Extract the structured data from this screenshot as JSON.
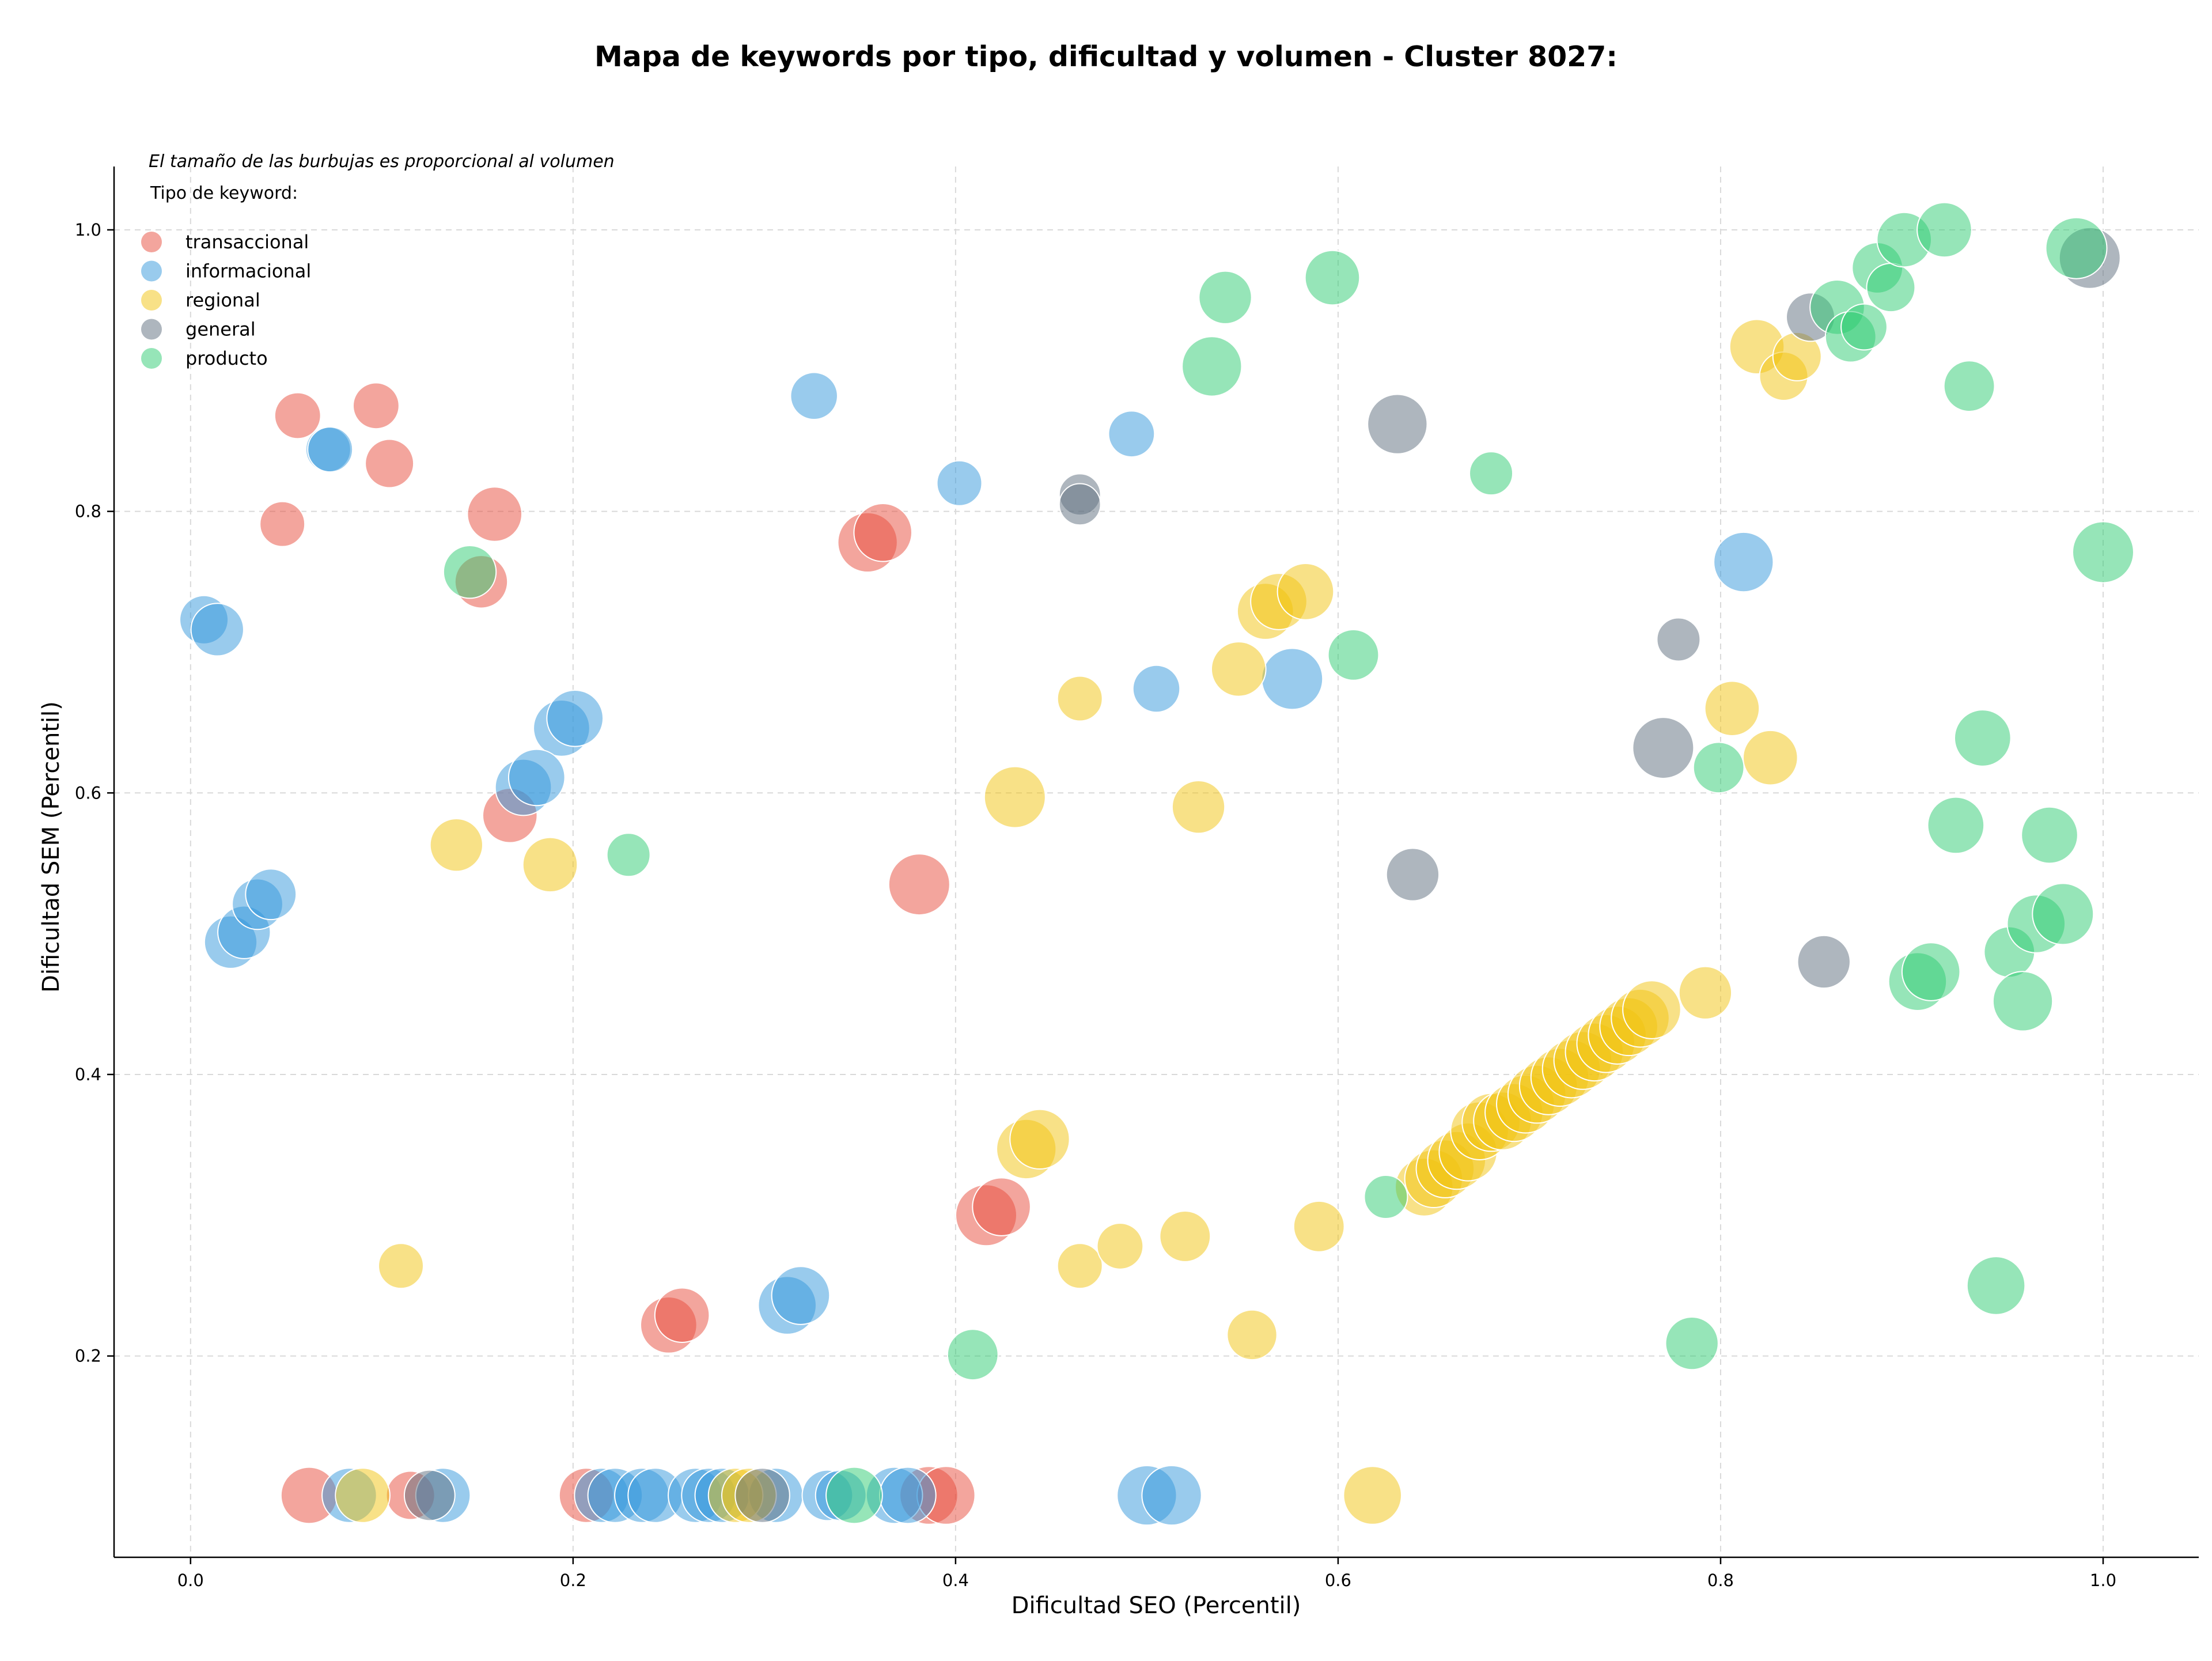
{
  "chart_data": {
    "type": "scatter",
    "title": "Mapa de keywords por tipo, dificultad y volumen - Cluster 8027:",
    "xlabel": "Dificultad SEO (Percentil)",
    "ylabel": "Dificultad SEM (Percentil)",
    "note": "El tamaño de las burbujas es proporcional al volumen",
    "legend_title": "Tipo de keyword:",
    "legend_position": "top-left",
    "grid": true,
    "xlim": [
      -0.04,
      1.05
    ],
    "ylim": [
      0.057,
      1.045
    ],
    "x_ticks": [
      "0.0",
      "0.2",
      "0.4",
      "0.6",
      "0.8",
      "1.0"
    ],
    "y_ticks": [
      "0.2",
      "0.4",
      "0.6",
      "0.8",
      "1.0"
    ],
    "size_unit": "relative volume (0-1)",
    "series": [
      {
        "name": "transaccional",
        "color": "#E74C3C",
        "points": [
          {
            "x": 0.056,
            "y": 0.868,
            "s": 0.2
          },
          {
            "x": 0.097,
            "y": 0.875,
            "s": 0.2
          },
          {
            "x": 0.104,
            "y": 0.834,
            "s": 0.25
          },
          {
            "x": 0.048,
            "y": 0.791,
            "s": 0.18
          },
          {
            "x": 0.159,
            "y": 0.798,
            "s": 0.4
          },
          {
            "x": 0.152,
            "y": 0.75,
            "s": 0.35
          },
          {
            "x": 0.167,
            "y": 0.584,
            "s": 0.4
          },
          {
            "x": 0.354,
            "y": 0.778,
            "s": 0.55
          },
          {
            "x": 0.362,
            "y": 0.785,
            "s": 0.5
          },
          {
            "x": 0.381,
            "y": 0.535,
            "s": 0.6
          },
          {
            "x": 0.416,
            "y": 0.3,
            "s": 0.6
          },
          {
            "x": 0.424,
            "y": 0.306,
            "s": 0.5
          },
          {
            "x": 0.25,
            "y": 0.222,
            "s": 0.45
          },
          {
            "x": 0.257,
            "y": 0.229,
            "s": 0.4
          },
          {
            "x": 0.062,
            "y": 0.101,
            "s": 0.45
          },
          {
            "x": 0.115,
            "y": 0.101,
            "s": 0.25
          },
          {
            "x": 0.207,
            "y": 0.101,
            "s": 0.4
          },
          {
            "x": 0.386,
            "y": 0.101,
            "s": 0.5
          },
          {
            "x": 0.395,
            "y": 0.101,
            "s": 0.5
          }
        ]
      },
      {
        "name": "informacional",
        "color": "#3498DB",
        "points": [
          {
            "x": 0.072,
            "y": 0.844,
            "s": 0.18
          },
          {
            "x": 0.073,
            "y": 0.844,
            "s": 0.18
          },
          {
            "x": 0.007,
            "y": 0.723,
            "s": 0.25
          },
          {
            "x": 0.014,
            "y": 0.716,
            "s": 0.35
          },
          {
            "x": 0.326,
            "y": 0.882,
            "s": 0.22
          },
          {
            "x": 0.402,
            "y": 0.82,
            "s": 0.18
          },
          {
            "x": 0.492,
            "y": 0.855,
            "s": 0.2
          },
          {
            "x": 0.505,
            "y": 0.674,
            "s": 0.22
          },
          {
            "x": 0.194,
            "y": 0.646,
            "s": 0.45
          },
          {
            "x": 0.201,
            "y": 0.653,
            "s": 0.45
          },
          {
            "x": 0.174,
            "y": 0.604,
            "s": 0.45
          },
          {
            "x": 0.181,
            "y": 0.611,
            "s": 0.45
          },
          {
            "x": 0.021,
            "y": 0.494,
            "s": 0.35
          },
          {
            "x": 0.028,
            "y": 0.501,
            "s": 0.35
          },
          {
            "x": 0.035,
            "y": 0.521,
            "s": 0.3
          },
          {
            "x": 0.042,
            "y": 0.528,
            "s": 0.3
          },
          {
            "x": 0.576,
            "y": 0.681,
            "s": 0.6
          },
          {
            "x": 0.812,
            "y": 0.764,
            "s": 0.55
          },
          {
            "x": 0.312,
            "y": 0.236,
            "s": 0.5
          },
          {
            "x": 0.319,
            "y": 0.243,
            "s": 0.5
          },
          {
            "x": 0.083,
            "y": 0.101,
            "s": 0.4
          },
          {
            "x": 0.132,
            "y": 0.101,
            "s": 0.4
          },
          {
            "x": 0.215,
            "y": 0.101,
            "s": 0.4
          },
          {
            "x": 0.222,
            "y": 0.101,
            "s": 0.4
          },
          {
            "x": 0.236,
            "y": 0.101,
            "s": 0.4
          },
          {
            "x": 0.243,
            "y": 0.101,
            "s": 0.4
          },
          {
            "x": 0.264,
            "y": 0.101,
            "s": 0.4
          },
          {
            "x": 0.271,
            "y": 0.101,
            "s": 0.4
          },
          {
            "x": 0.278,
            "y": 0.101,
            "s": 0.4
          },
          {
            "x": 0.306,
            "y": 0.101,
            "s": 0.4
          },
          {
            "x": 0.333,
            "y": 0.101,
            "s": 0.3
          },
          {
            "x": 0.34,
            "y": 0.101,
            "s": 0.3
          },
          {
            "x": 0.368,
            "y": 0.101,
            "s": 0.45
          },
          {
            "x": 0.375,
            "y": 0.101,
            "s": 0.45
          },
          {
            "x": 0.5,
            "y": 0.101,
            "s": 0.55
          },
          {
            "x": 0.513,
            "y": 0.101,
            "s": 0.55
          }
        ]
      },
      {
        "name": "regional",
        "color": "#F1C40F",
        "points": [
          {
            "x": 0.11,
            "y": 0.264,
            "s": 0.18
          },
          {
            "x": 0.139,
            "y": 0.563,
            "s": 0.35
          },
          {
            "x": 0.188,
            "y": 0.549,
            "s": 0.4
          },
          {
            "x": 0.431,
            "y": 0.597,
            "s": 0.6
          },
          {
            "x": 0.465,
            "y": 0.667,
            "s": 0.18
          },
          {
            "x": 0.527,
            "y": 0.59,
            "s": 0.35
          },
          {
            "x": 0.548,
            "y": 0.688,
            "s": 0.4
          },
          {
            "x": 0.562,
            "y": 0.729,
            "s": 0.45
          },
          {
            "x": 0.569,
            "y": 0.736,
            "s": 0.45
          },
          {
            "x": 0.583,
            "y": 0.743,
            "s": 0.45
          },
          {
            "x": 0.437,
            "y": 0.347,
            "s": 0.55
          },
          {
            "x": 0.444,
            "y": 0.354,
            "s": 0.55
          },
          {
            "x": 0.465,
            "y": 0.264,
            "s": 0.18
          },
          {
            "x": 0.486,
            "y": 0.278,
            "s": 0.2
          },
          {
            "x": 0.52,
            "y": 0.285,
            "s": 0.3
          },
          {
            "x": 0.555,
            "y": 0.215,
            "s": 0.28
          },
          {
            "x": 0.59,
            "y": 0.292,
            "s": 0.3
          },
          {
            "x": 0.806,
            "y": 0.66,
            "s": 0.4
          },
          {
            "x": 0.826,
            "y": 0.625,
            "s": 0.4
          },
          {
            "x": 0.792,
            "y": 0.458,
            "s": 0.35
          },
          {
            "x": 0.819,
            "y": 0.917,
            "s": 0.4
          },
          {
            "x": 0.833,
            "y": 0.896,
            "s": 0.25
          },
          {
            "x": 0.84,
            "y": 0.91,
            "s": 0.25
          },
          {
            "x": 0.09,
            "y": 0.101,
            "s": 0.4
          },
          {
            "x": 0.285,
            "y": 0.101,
            "s": 0.4
          },
          {
            "x": 0.292,
            "y": 0.101,
            "s": 0.4
          },
          {
            "x": 0.618,
            "y": 0.101,
            "s": 0.5
          },
          {
            "x": 0.645,
            "y": 0.32,
            "s": 0.5
          },
          {
            "x": 0.65,
            "y": 0.326,
            "s": 0.5
          },
          {
            "x": 0.656,
            "y": 0.333,
            "s": 0.5
          },
          {
            "x": 0.662,
            "y": 0.339,
            "s": 0.5
          },
          {
            "x": 0.668,
            "y": 0.345,
            "s": 0.5
          },
          {
            "x": 0.674,
            "y": 0.36,
            "s": 0.5
          },
          {
            "x": 0.68,
            "y": 0.366,
            "s": 0.5
          },
          {
            "x": 0.686,
            "y": 0.367,
            "s": 0.5
          },
          {
            "x": 0.692,
            "y": 0.373,
            "s": 0.5
          },
          {
            "x": 0.698,
            "y": 0.379,
            "s": 0.5
          },
          {
            "x": 0.704,
            "y": 0.386,
            "s": 0.5
          },
          {
            "x": 0.71,
            "y": 0.392,
            "s": 0.5
          },
          {
            "x": 0.716,
            "y": 0.398,
            "s": 0.5
          },
          {
            "x": 0.722,
            "y": 0.404,
            "s": 0.5
          },
          {
            "x": 0.728,
            "y": 0.41,
            "s": 0.5
          },
          {
            "x": 0.734,
            "y": 0.416,
            "s": 0.5
          },
          {
            "x": 0.74,
            "y": 0.422,
            "s": 0.5
          },
          {
            "x": 0.746,
            "y": 0.428,
            "s": 0.5
          },
          {
            "x": 0.752,
            "y": 0.434,
            "s": 0.5
          },
          {
            "x": 0.758,
            "y": 0.44,
            "s": 0.5
          },
          {
            "x": 0.764,
            "y": 0.446,
            "s": 0.5
          }
        ]
      },
      {
        "name": "general",
        "color": "#5D6D7E",
        "points": [
          {
            "x": 0.465,
            "y": 0.812,
            "s": 0.12
          },
          {
            "x": 0.465,
            "y": 0.805,
            "s": 0.12
          },
          {
            "x": 0.631,
            "y": 0.862,
            "s": 0.55
          },
          {
            "x": 0.639,
            "y": 0.542,
            "s": 0.35
          },
          {
            "x": 0.77,
            "y": 0.632,
            "s": 0.6
          },
          {
            "x": 0.778,
            "y": 0.709,
            "s": 0.15
          },
          {
            "x": 0.854,
            "y": 0.48,
            "s": 0.35
          },
          {
            "x": 0.847,
            "y": 0.938,
            "s": 0.25
          },
          {
            "x": 0.993,
            "y": 0.98,
            "s": 0.6
          },
          {
            "x": 0.125,
            "y": 0.101,
            "s": 0.3
          },
          {
            "x": 0.299,
            "y": 0.101,
            "s": 0.4
          }
        ]
      },
      {
        "name": "producto",
        "color": "#2ECC71",
        "points": [
          {
            "x": 0.146,
            "y": 0.757,
            "s": 0.35
          },
          {
            "x": 0.229,
            "y": 0.556,
            "s": 0.15
          },
          {
            "x": 0.534,
            "y": 0.903,
            "s": 0.55
          },
          {
            "x": 0.541,
            "y": 0.952,
            "s": 0.35
          },
          {
            "x": 0.597,
            "y": 0.966,
            "s": 0.4
          },
          {
            "x": 0.608,
            "y": 0.698,
            "s": 0.3
          },
          {
            "x": 0.68,
            "y": 0.827,
            "s": 0.15
          },
          {
            "x": 0.625,
            "y": 0.313,
            "s": 0.15
          },
          {
            "x": 0.409,
            "y": 0.201,
            "s": 0.3
          },
          {
            "x": 0.785,
            "y": 0.209,
            "s": 0.35
          },
          {
            "x": 0.799,
            "y": 0.618,
            "s": 0.3
          },
          {
            "x": 0.861,
            "y": 0.945,
            "s": 0.4
          },
          {
            "x": 0.868,
            "y": 0.924,
            "s": 0.3
          },
          {
            "x": 0.875,
            "y": 0.931,
            "s": 0.2
          },
          {
            "x": 0.882,
            "y": 0.973,
            "s": 0.3
          },
          {
            "x": 0.889,
            "y": 0.959,
            "s": 0.25
          },
          {
            "x": 0.896,
            "y": 0.993,
            "s": 0.4
          },
          {
            "x": 0.917,
            "y": 1.0,
            "s": 0.4
          },
          {
            "x": 0.93,
            "y": 0.889,
            "s": 0.3
          },
          {
            "x": 0.937,
            "y": 0.639,
            "s": 0.45
          },
          {
            "x": 0.923,
            "y": 0.577,
            "s": 0.45
          },
          {
            "x": 0.972,
            "y": 0.57,
            "s": 0.45
          },
          {
            "x": 0.903,
            "y": 0.466,
            "s": 0.5
          },
          {
            "x": 0.91,
            "y": 0.473,
            "s": 0.5
          },
          {
            "x": 0.951,
            "y": 0.487,
            "s": 0.3
          },
          {
            "x": 0.958,
            "y": 0.452,
            "s": 0.55
          },
          {
            "x": 0.965,
            "y": 0.507,
            "s": 0.5
          },
          {
            "x": 0.979,
            "y": 0.514,
            "s": 0.6
          },
          {
            "x": 0.944,
            "y": 0.25,
            "s": 0.5
          },
          {
            "x": 0.986,
            "y": 0.987,
            "s": 0.6
          },
          {
            "x": 1.0,
            "y": 0.771,
            "s": 0.6
          },
          {
            "x": 0.347,
            "y": 0.101,
            "s": 0.45
          }
        ]
      }
    ]
  }
}
